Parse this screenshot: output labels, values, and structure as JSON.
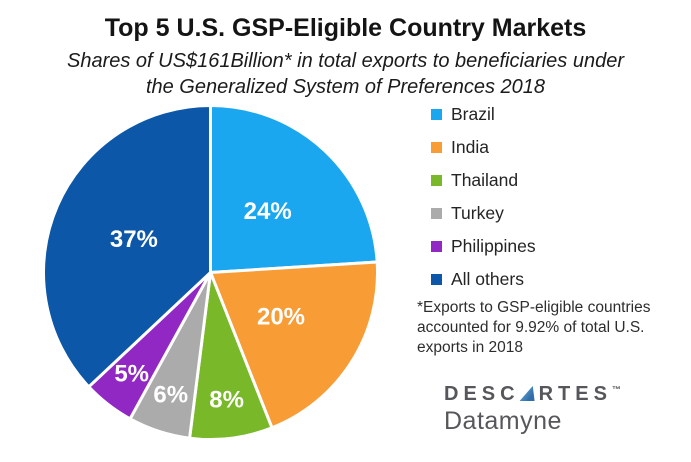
{
  "header": {
    "title": "Top 5 U.S. GSP-Eligible Country Markets",
    "subtitle_line1": "Shares of US$161Billion* in total exports to beneficiaries under",
    "subtitle_line2": "the Generalized System of Preferences 2018"
  },
  "chart_data": {
    "type": "pie",
    "title": "Top 5 U.S. GSP-Eligible Country Markets",
    "subtitle": "Shares of US$161Billion* in total exports to beneficiaries under the Generalized System of Preferences 2018",
    "unit": "%",
    "start_angle_deg": 0,
    "direction": "clockwise",
    "slice_border_color": "#ffffff",
    "legend_position": "right",
    "series": [
      {
        "name": "Brazil",
        "value": 24,
        "label": "24%",
        "color": "#1ba6f0"
      },
      {
        "name": "India",
        "value": 20,
        "label": "20%",
        "color": "#f89c35"
      },
      {
        "name": "Thailand",
        "value": 8,
        "label": "8%",
        "color": "#79b829"
      },
      {
        "name": "Turkey",
        "value": 6,
        "label": "6%",
        "color": "#ababab"
      },
      {
        "name": "Philippines",
        "value": 5,
        "label": "5%",
        "color": "#9128c4"
      },
      {
        "name": "All others",
        "value": 37,
        "label": "37%",
        "color": "#0c57a8"
      }
    ]
  },
  "footnote": {
    "lines": [
      "*Exports to GSP-eligible countries",
      "accounted for 9.92% of total U.S.",
      "exports in 2018"
    ]
  },
  "logo": {
    "part1": "DESC",
    "part2": "RTES",
    "trademark": "™",
    "line2": "Datamyne",
    "text_color": "#55575a",
    "triangle_color": "#3577b5"
  }
}
